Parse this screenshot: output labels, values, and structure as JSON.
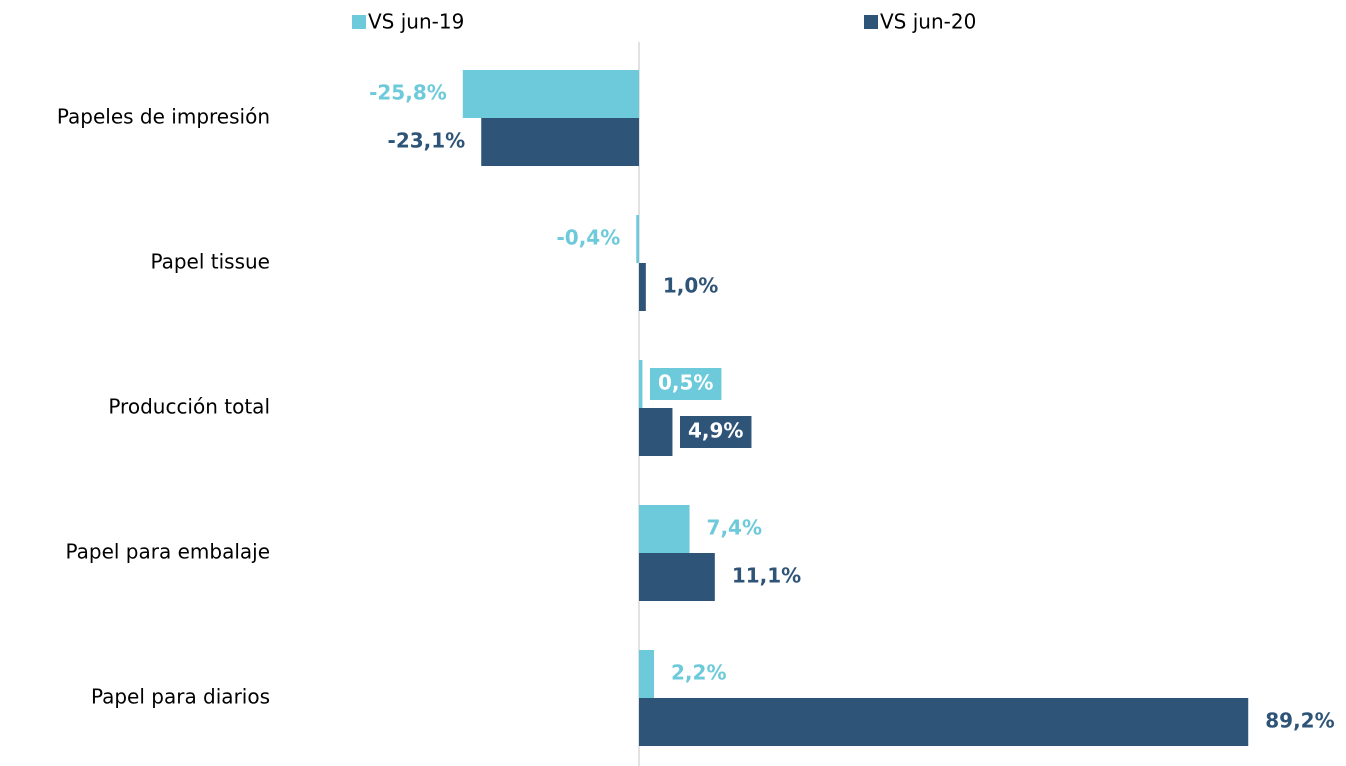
{
  "chart_data": {
    "type": "bar",
    "orientation": "horizontal",
    "categories": [
      "Papeles de impresión",
      "Papel tissue",
      "Producción total",
      "Papel para embalaje",
      "Papel para diarios"
    ],
    "series": [
      {
        "name": "VS jun-19",
        "color": "#6ccadb",
        "values": [
          -25.8,
          -0.4,
          0.5,
          7.4,
          2.2
        ],
        "value_labels": [
          "-25,8%",
          "-0,4%",
          "0,5%",
          "7,4%",
          "2,2%"
        ]
      },
      {
        "name": "VS jun-20",
        "color": "#2e5478",
        "values": [
          -23.1,
          1.0,
          4.9,
          11.1,
          89.2
        ],
        "value_labels": [
          "-23,1%",
          "1,0%",
          "4,9%",
          "11,1%",
          "89,2%"
        ]
      }
    ],
    "xlim": [
      -50,
      90
    ],
    "legend": "top"
  }
}
